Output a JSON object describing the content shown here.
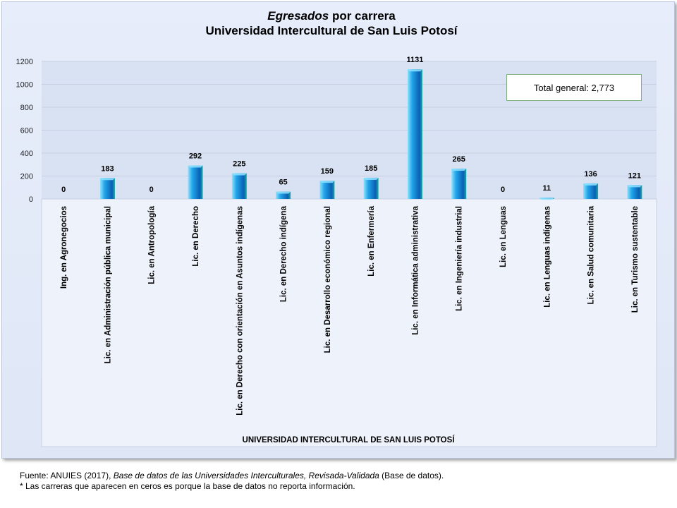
{
  "title": {
    "italic_part": "Egresados",
    "rest_part": " por carrera",
    "line2": "Universidad Intercultural de San Luis Potosí"
  },
  "total_label": "Total  general: 2,773",
  "source": {
    "prefix": "Fuente: ANUIES (2017), ",
    "italic": "Base de datos de las Universidades  Interculturales, Revisada-Validada",
    "suffix": "  (Base de datos).",
    "note": "* Las carreras que aparecen en ceros es porque  la base de datos no reporta información."
  },
  "colors": {
    "bar_light": "#8fe3ff",
    "bar_mid": "#22a6ea",
    "bar_dark": "#0a5fb4",
    "bar_side": "#1aa9a0",
    "plot_bg": "#d9e2f3",
    "grid": "#c7d0e2"
  },
  "chart_data": {
    "type": "bar",
    "xlabel": "UNIVERSIDAD INTERCULTURAL DE SAN LUIS POTOSÍ",
    "ylabel": "",
    "ylim": [
      0,
      1200
    ],
    "yticks": [
      0,
      200,
      400,
      600,
      800,
      1000,
      1200
    ],
    "grid": true,
    "categories": [
      "Ing. en Agronegocios",
      "Lic. en Administración pública municipal",
      "Lic. en Antropología",
      "Lic. en Derecho",
      "Lic. en Derecho con orientación en Asuntos indígenas",
      "Lic. en Derecho indígena",
      "Lic. en Desarrollo económico regional",
      "Lic. en Enfermería",
      "Lic. en Informática administrativa",
      "Lic. en Ingeniería industrial",
      "Lic. en Lenguas",
      "Lic. en Lenguas indígenas",
      "Lic. en Salud comunitaria",
      "Lic. en Turismo sustentable"
    ],
    "values": [
      0,
      183,
      0,
      292,
      225,
      65,
      159,
      185,
      1131,
      265,
      0,
      11,
      136,
      121
    ]
  }
}
